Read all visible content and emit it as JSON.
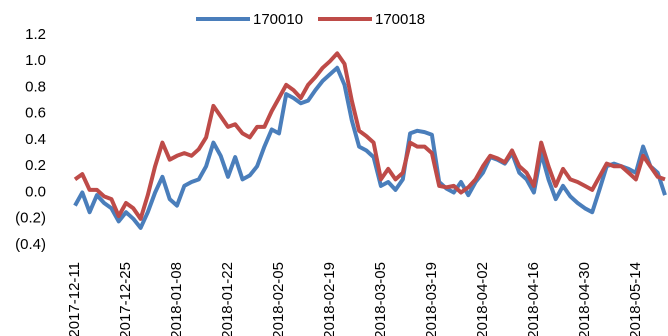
{
  "chart_data": {
    "type": "line",
    "categories": [
      "2017-12-11",
      null,
      null,
      null,
      null,
      null,
      null,
      "2017-12-25",
      null,
      null,
      null,
      null,
      null,
      null,
      "2018-01-08",
      null,
      null,
      null,
      null,
      null,
      null,
      "2018-01-22",
      null,
      null,
      null,
      null,
      null,
      null,
      "2018-02-05",
      null,
      null,
      null,
      null,
      null,
      null,
      "2018-02-19",
      null,
      null,
      null,
      null,
      null,
      null,
      "2018-03-05",
      null,
      null,
      null,
      null,
      null,
      null,
      "2018-03-19",
      null,
      null,
      null,
      null,
      null,
      null,
      "2018-04-02",
      null,
      null,
      null,
      null,
      null,
      null,
      "2018-04-16",
      null,
      null,
      null,
      null,
      null,
      null,
      "2018-04-30",
      null,
      null,
      null,
      null,
      null,
      null,
      "2018-05-14",
      null,
      null,
      null,
      null
    ],
    "series": [
      {
        "name": "170010",
        "color": "#4a7ebb",
        "values": [
          -0.1,
          0.0,
          -0.15,
          -0.02,
          -0.08,
          -0.12,
          -0.22,
          -0.15,
          -0.2,
          -0.27,
          -0.15,
          0.0,
          0.12,
          -0.05,
          -0.1,
          0.05,
          0.08,
          0.1,
          0.2,
          0.38,
          0.28,
          0.12,
          0.27,
          0.1,
          0.13,
          0.2,
          0.35,
          0.48,
          0.45,
          0.75,
          0.72,
          0.68,
          0.7,
          0.78,
          0.85,
          0.9,
          0.95,
          0.82,
          0.55,
          0.35,
          0.32,
          0.27,
          0.05,
          0.08,
          0.02,
          0.1,
          0.45,
          0.47,
          0.46,
          0.44,
          0.08,
          0.03,
          0.0,
          0.08,
          -0.02,
          0.08,
          0.15,
          0.27,
          0.25,
          0.22,
          0.3,
          0.15,
          0.1,
          0.0,
          0.3,
          0.1,
          -0.05,
          0.05,
          -0.03,
          -0.08,
          -0.12,
          -0.15,
          0.02,
          0.2,
          0.22,
          0.2,
          0.18,
          0.15,
          0.35,
          0.2,
          0.15,
          -0.02
        ]
      },
      {
        "name": "170018",
        "color": "#be4b48",
        "values": [
          0.1,
          0.14,
          0.02,
          0.02,
          -0.03,
          -0.05,
          -0.18,
          -0.08,
          -0.12,
          -0.2,
          -0.02,
          0.2,
          0.38,
          0.25,
          0.28,
          0.3,
          0.28,
          0.33,
          0.42,
          0.66,
          0.58,
          0.5,
          0.52,
          0.45,
          0.42,
          0.5,
          0.5,
          0.62,
          0.72,
          0.82,
          0.78,
          0.72,
          0.82,
          0.88,
          0.95,
          1.0,
          1.06,
          0.98,
          0.7,
          0.47,
          0.43,
          0.38,
          0.1,
          0.18,
          0.1,
          0.15,
          0.38,
          0.35,
          0.35,
          0.3,
          0.05,
          0.04,
          0.05,
          0.0,
          0.04,
          0.1,
          0.2,
          0.28,
          0.26,
          0.23,
          0.32,
          0.2,
          0.15,
          0.05,
          0.38,
          0.2,
          0.05,
          0.18,
          0.1,
          0.08,
          0.05,
          0.02,
          0.12,
          0.22,
          0.2,
          0.2,
          0.15,
          0.1,
          0.28,
          0.2,
          0.12,
          0.1
        ]
      }
    ],
    "ylim": [
      -0.4,
      1.2
    ],
    "yticks": [
      {
        "value": -0.4,
        "label": "(0.4)"
      },
      {
        "value": -0.2,
        "label": "(0.2)"
      },
      {
        "value": 0,
        "label": "0.0"
      },
      0.2,
      0.4,
      0.6,
      0.8,
      {
        "value": 1,
        "label": "1.0"
      },
      1.2
    ],
    "negative_tick_color": "#ff0000",
    "legend": "top"
  }
}
